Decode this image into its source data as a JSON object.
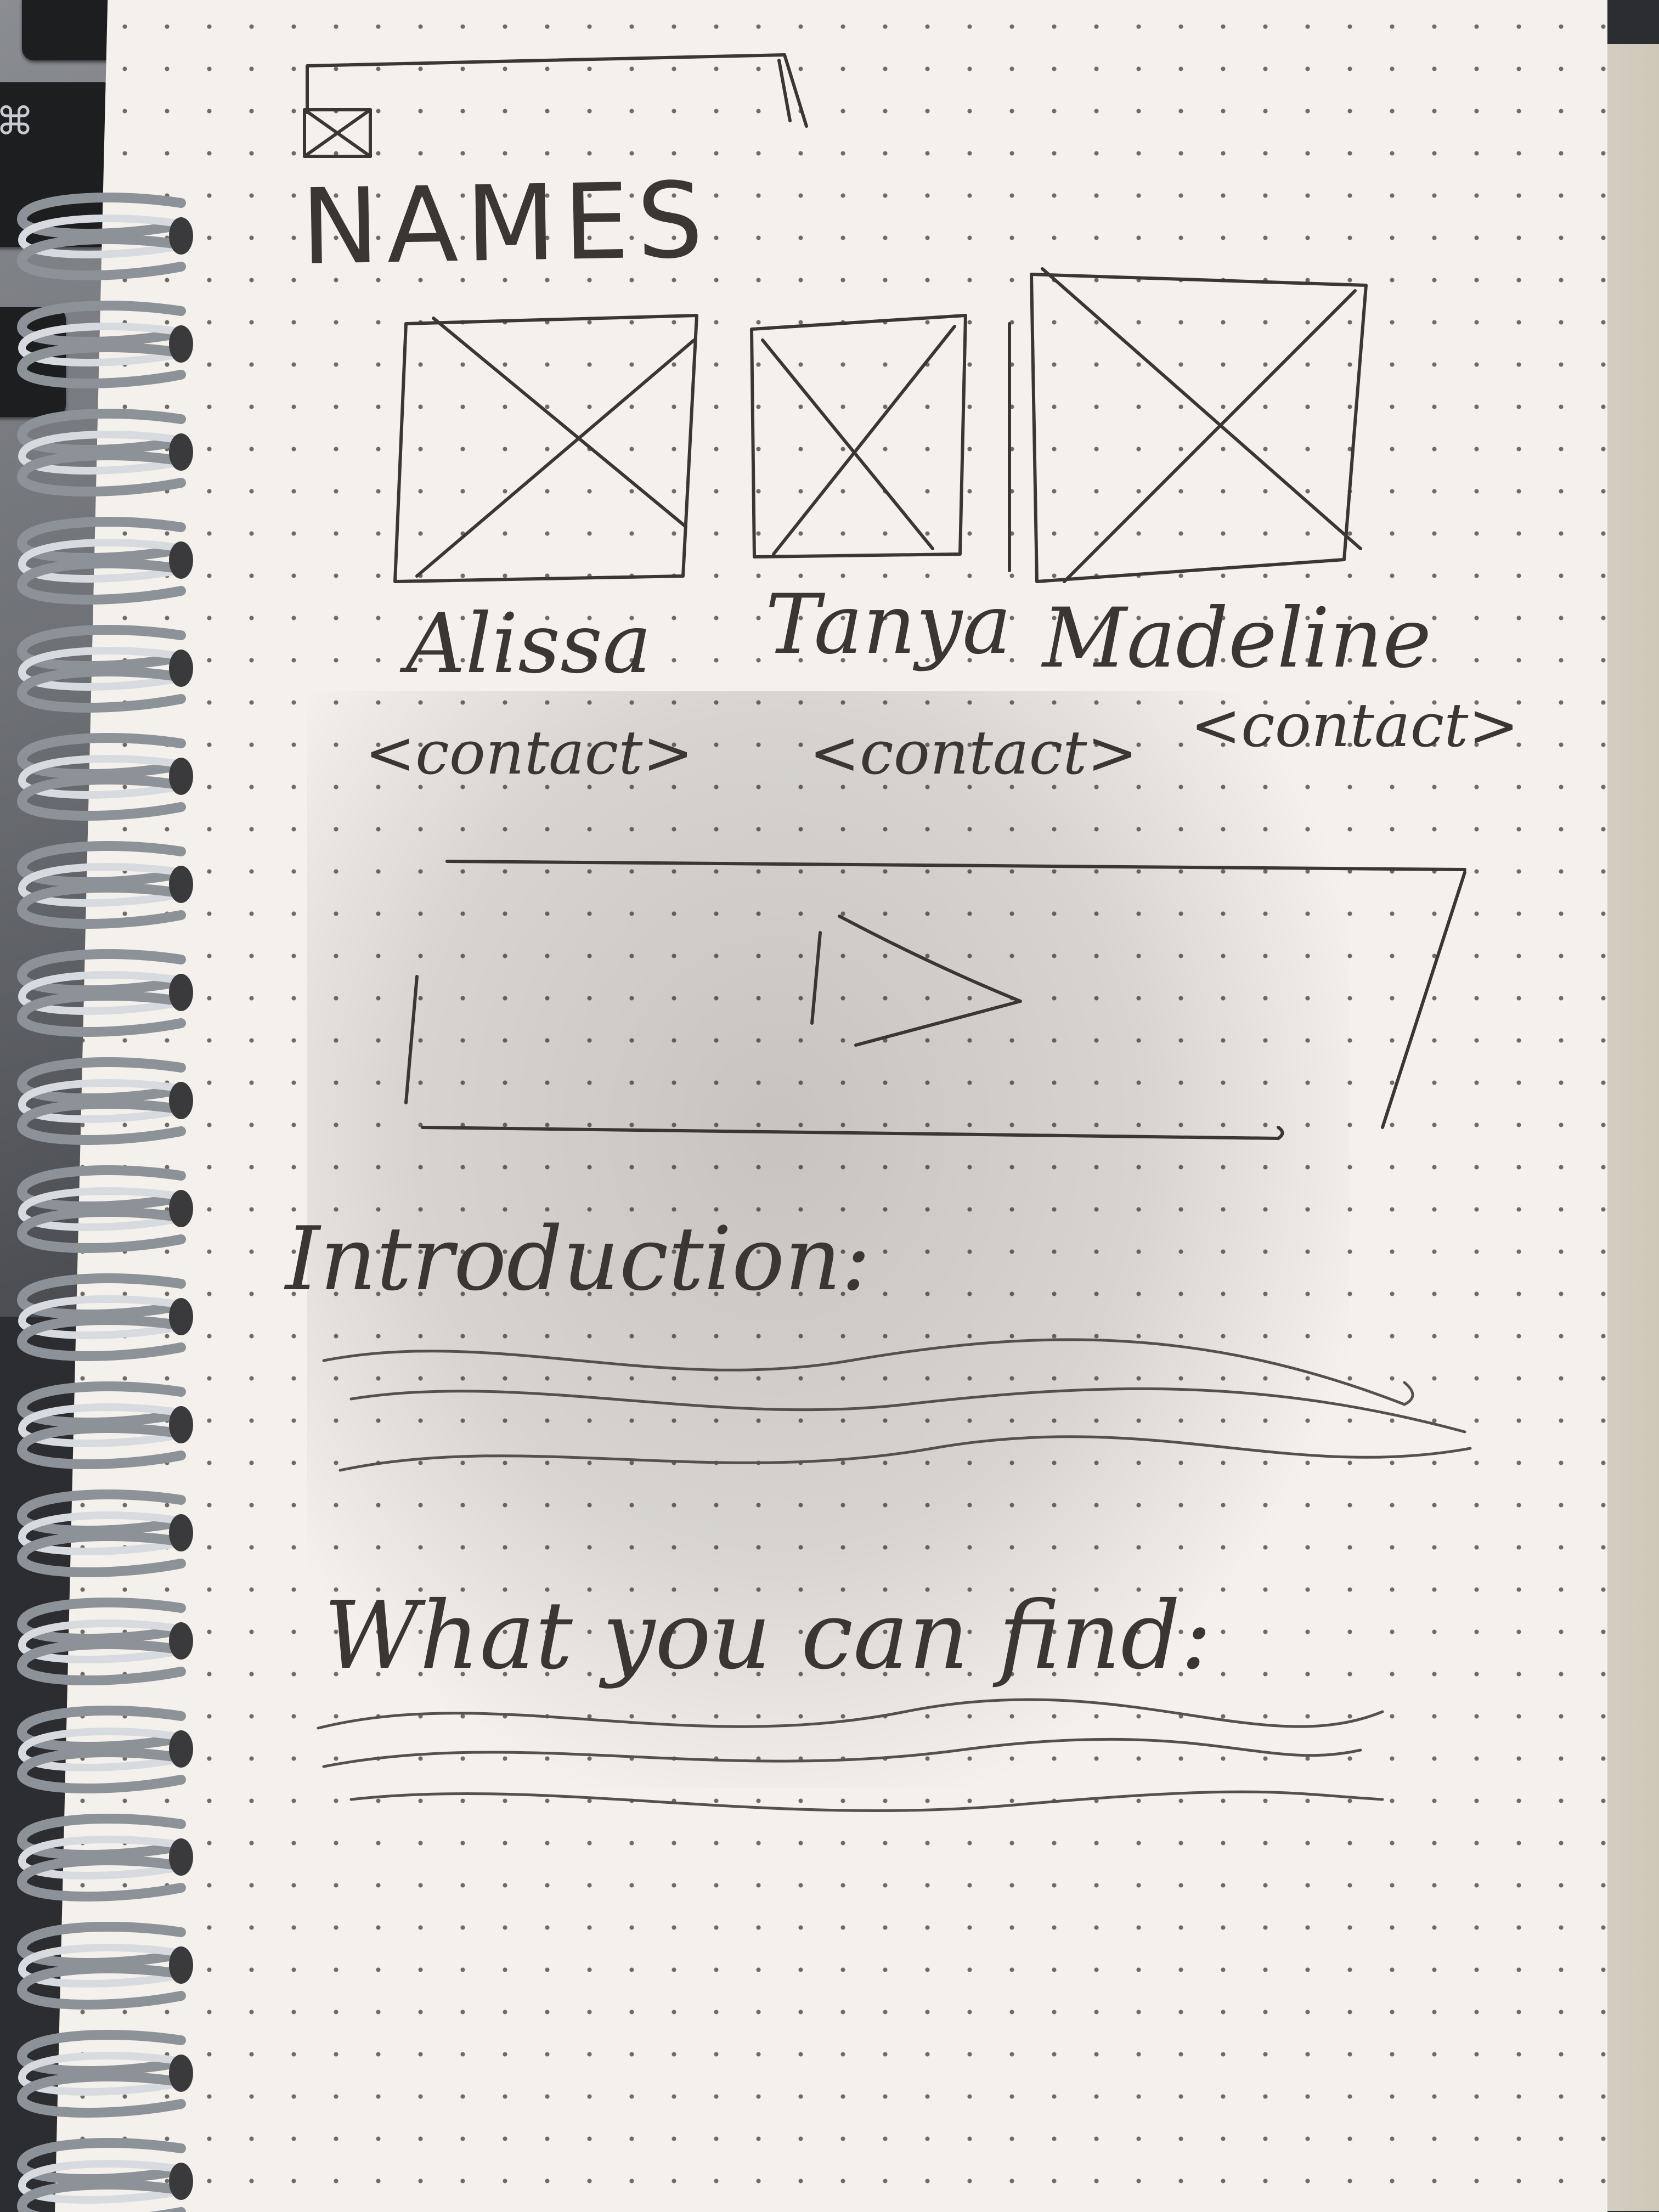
{
  "sketch": {
    "heading": "NAMES",
    "people": [
      {
        "name": "Alissa",
        "contact": "<contact>"
      },
      {
        "name": "Tanya",
        "contact": "<contact>"
      },
      {
        "name": "Madeline",
        "contact": "<contact>"
      }
    ],
    "video_icon": "play-icon",
    "sections": [
      {
        "heading": "Introduction:"
      },
      {
        "heading": "What you can find:"
      }
    ]
  },
  "colors": {
    "ink": "#3a3633",
    "paper": "#f4f1ed",
    "dots": "#6e6a66"
  }
}
